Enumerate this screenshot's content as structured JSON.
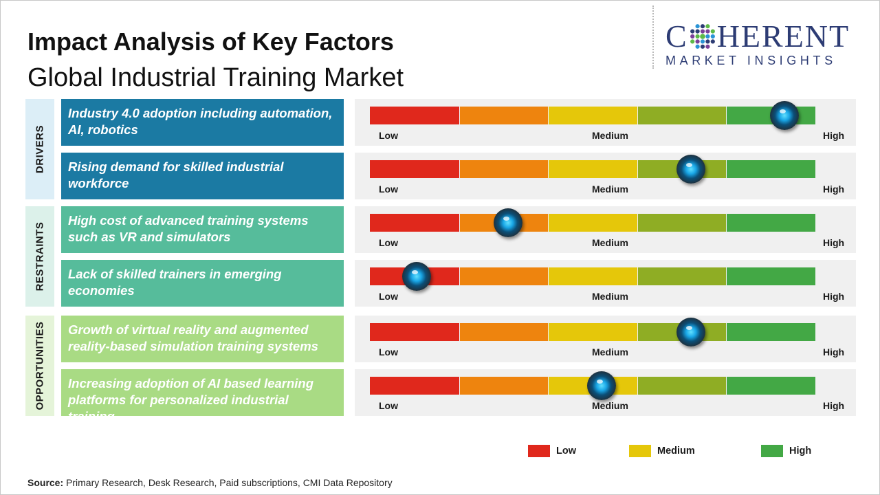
{
  "header": {
    "title": "Impact Analysis of Key Factors",
    "subtitle": "Global Industrial Training Market"
  },
  "logo": {
    "main_left": "C",
    "main_right": "HERENT",
    "sub": "MARKET INSIGHTS",
    "color": "#2d3c74"
  },
  "source": {
    "label": "Source:",
    "text": " Primary Research, Desk Research, Paid subscriptions, CMI Data Repository"
  },
  "legend": [
    {
      "label": "Low",
      "color": "#e0281c"
    },
    {
      "label": "Medium",
      "color": "#e5c70a"
    },
    {
      "label": "High",
      "color": "#43a845"
    }
  ],
  "chart_data": {
    "type": "gauge",
    "scale_labels": [
      "Low",
      "Medium",
      "High"
    ],
    "segment_colors": [
      "#e0281c",
      "#ee840e",
      "#e5c70a",
      "#8fad24",
      "#43a845"
    ],
    "range": [
      0,
      1
    ],
    "categories": [
      {
        "name": "DRIVERS",
        "bg": "#dceef7",
        "factor_color": "#1b7aa3",
        "factors": [
          {
            "text": "Industry 4.0 adoption including automation, AI, robotics",
            "value": 0.93
          },
          {
            "text": "Rising demand for skilled industrial workforce",
            "value": 0.72
          }
        ]
      },
      {
        "name": "RESTRAINTS",
        "bg": "#dcf1ea",
        "factor_color": "#56bc9b",
        "factors": [
          {
            "text": "High cost of advanced training systems such as VR and simulators",
            "value": 0.31
          },
          {
            "text": "Lack of skilled trainers in emerging economies",
            "value": 0.105
          }
        ]
      },
      {
        "name": "OPPORTUNITIES",
        "bg": "#e5f4d9",
        "factor_color": "#a9db84",
        "factors": [
          {
            "text": "Growth of virtual reality and augmented reality-based simulation training systems",
            "value": 0.72
          },
          {
            "text": "Increasing adoption of AI based learning platforms for personalized industrial training",
            "value": 0.52
          }
        ]
      }
    ]
  }
}
